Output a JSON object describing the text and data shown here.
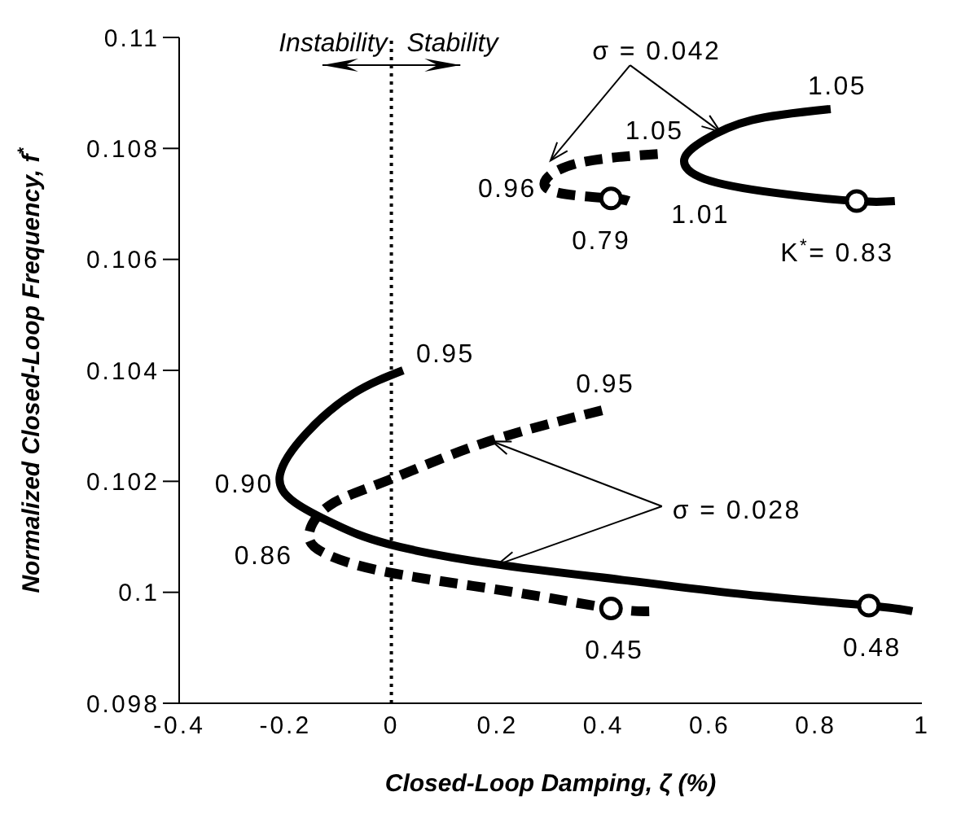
{
  "chart_data": {
    "type": "line",
    "xlabel": "Closed-Loop Damping, ζ (%)",
    "ylabel": "Normalized Closed-Loop Frequency, f$^{*}$",
    "xlim": [
      -0.4,
      1
    ],
    "xticks": [
      -0.4,
      -0.2,
      0,
      0.2,
      0.4,
      0.6,
      0.8,
      1
    ],
    "ylim": [
      0.098,
      0.11
    ],
    "yticks": [
      0.098,
      0.1,
      0.102,
      0.104,
      0.106,
      0.108,
      0.11
    ],
    "grid": false,
    "legend": false,
    "marker": "none",
    "ref_lines": [
      {
        "axis": "x",
        "value": 0,
        "line_style": "dotted",
        "color": "#000000"
      }
    ],
    "series": [
      {
        "color": "#000000",
        "line_style": "solid",
        "x": [
          0.022,
          -0.072,
          -0.16,
          -0.21,
          -0.182,
          -0.105,
          -0.006,
          0.193,
          0.447,
          0.668,
          0.9,
          0.982
        ],
        "values": [
          0.104,
          0.10358,
          0.10287,
          0.10212,
          0.10162,
          0.10122,
          0.10087,
          0.10051,
          0.10021,
          0.09996,
          0.09976,
          0.09966
        ]
      },
      {
        "color": "#000000",
        "line_style": "dashed",
        "x": [
          0.397,
          0.171,
          -0.006,
          -0.116,
          -0.155,
          -0.127,
          -0.006,
          0.226,
          0.414,
          0.491
        ],
        "values": [
          0.10328,
          0.10268,
          0.10202,
          0.10157,
          0.10106,
          0.10071,
          0.10036,
          0.10001,
          0.09971,
          0.09966
        ]
      },
      {
        "color": "#000000",
        "line_style": "solid",
        "x": [
          0.828,
          0.679,
          0.59,
          0.552,
          0.59,
          0.723,
          0.877,
          0.949
        ],
        "values": [
          0.10871,
          0.10851,
          0.10815,
          0.1078,
          0.10745,
          0.1072,
          0.10705,
          0.10705
        ]
      },
      {
        "color": "#000000",
        "line_style": "dashed",
        "x": [
          0.502,
          0.359,
          0.292,
          0.315,
          0.414,
          0.447
        ],
        "values": [
          0.1079,
          0.10775,
          0.10745,
          0.1072,
          0.1071,
          0.10705
        ]
      },
      {
        "type": "scatter",
        "marker": "circle",
        "color": "#000000",
        "x": [
          0.414,
          0.9,
          0.414,
          0.877
        ],
        "values": [
          0.09971,
          0.09976,
          0.1071,
          0.10705
        ]
      }
    ],
    "annotations": [
      "Instability",
      "Stability",
      {
        "text": "σ = 0.042",
        "x": 0.62,
        "y": 0.1083
      },
      {
        "text": "σ = 0.028",
        "x": 0.2,
        "y": 0.1005
      },
      {
        "text": "0.95",
        "x": 0.022,
        "y": 0.104
      },
      {
        "text": "0.95",
        "x": 0.397,
        "y": 0.10328
      },
      {
        "text": "0.90",
        "x": -0.21,
        "y": 0.10212
      },
      {
        "text": "0.86",
        "x": -0.155,
        "y": 0.10106
      },
      {
        "text": "0.45",
        "x": 0.414,
        "y": 0.09971
      },
      {
        "text": "0.48",
        "x": 0.9,
        "y": 0.09976
      },
      {
        "text": "1.05",
        "x": 0.828,
        "y": 0.10871
      },
      {
        "text": "1.05",
        "x": 0.502,
        "y": 0.1079
      },
      {
        "text": "0.96",
        "x": 0.292,
        "y": 0.10745
      },
      {
        "text": "0.79",
        "x": 0.414,
        "y": 0.1071
      },
      {
        "text": "1.01",
        "x": 0.552,
        "y": 0.1078
      },
      {
        "text": "K$^{*}$= 0.83",
        "x": 0.877,
        "y": 0.10705
      }
    ]
  }
}
